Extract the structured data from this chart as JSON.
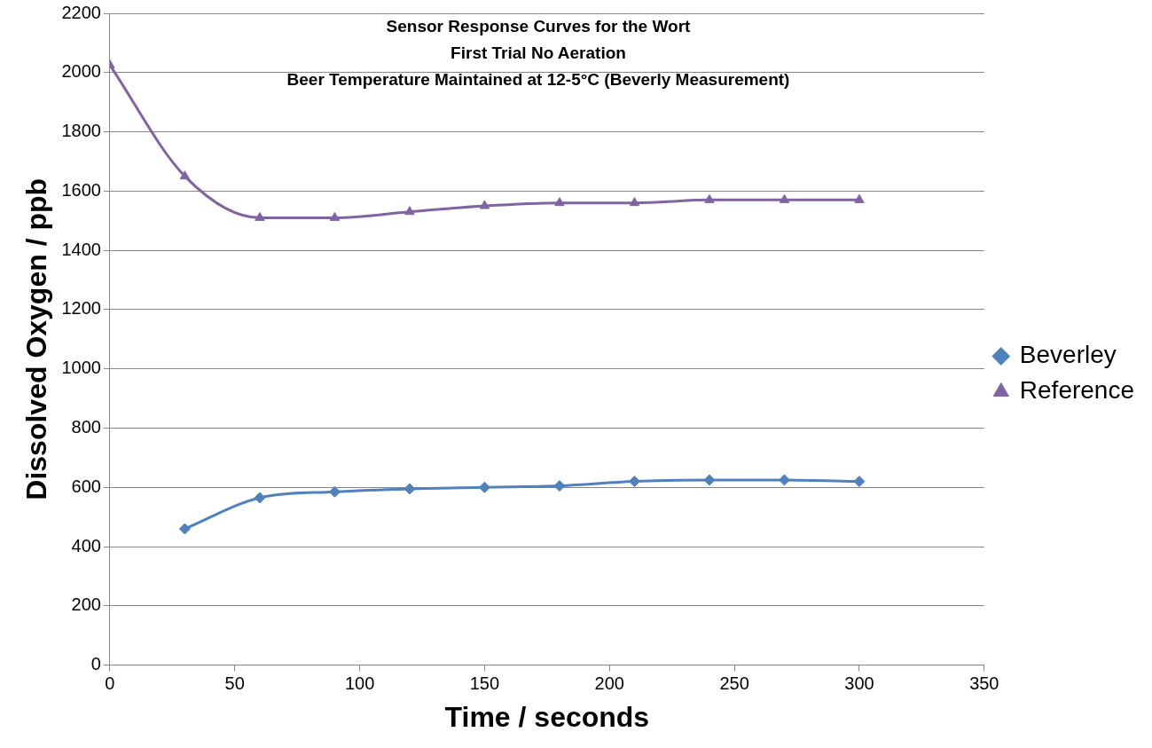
{
  "chart_data": {
    "type": "line",
    "title": "Sensor Response Curves for the Wort\nFirst Trial No Aeration\nBeer Temperature Maintained at 12-5°C (Beverly Measurement)",
    "xlabel": "Time / seconds",
    "ylabel": "Dissolved Oxygen / ppb",
    "series": [
      {
        "name": "Beverley",
        "color": "#4f81bd",
        "marker": "diamond",
        "x": [
          30,
          60,
          90,
          120,
          150,
          180,
          210,
          240,
          270,
          300
        ],
        "values": [
          460,
          565,
          585,
          595,
          600,
          605,
          620,
          625,
          625,
          620
        ]
      },
      {
        "name": "Reference",
        "color": "#8064a2",
        "marker": "triangle",
        "x": [
          0,
          30,
          60,
          90,
          120,
          150,
          180,
          210,
          240,
          270,
          300
        ],
        "values": [
          2025,
          1650,
          1510,
          1510,
          1530,
          1550,
          1560,
          1560,
          1570,
          1570,
          1570
        ]
      }
    ],
    "xlim": [
      0,
      350
    ],
    "xticks": [
      0,
      50,
      100,
      150,
      200,
      250,
      300,
      350
    ],
    "ylim": [
      0,
      2200
    ],
    "yticks": [
      0,
      200,
      400,
      600,
      800,
      1000,
      1200,
      1400,
      1600,
      1800,
      2000,
      2200
    ],
    "grid": "y",
    "legend": "right"
  }
}
